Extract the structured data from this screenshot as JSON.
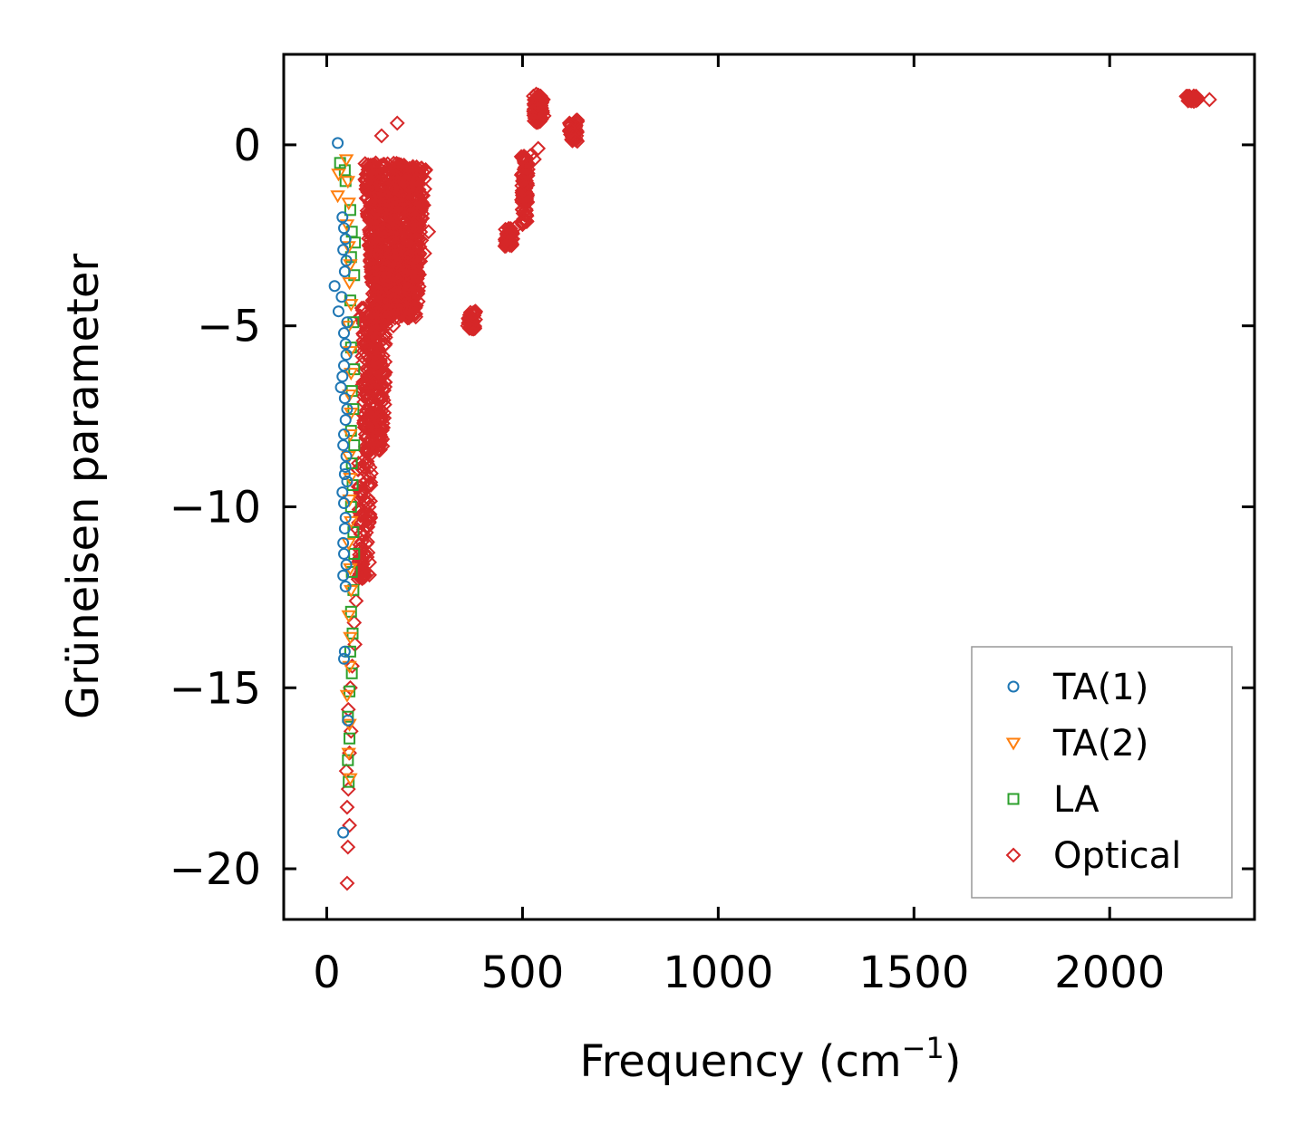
{
  "chart_data": {
    "type": "scatter",
    "title": "",
    "xlabel": "Frequency (cm",
    "xlabel_unit_superscript": "−1",
    "xlabel_close": ")",
    "ylabel": "Grüneisen parameter",
    "xlim": [
      -110,
      2370
    ],
    "ylim": [
      -21.4,
      2.5
    ],
    "x_ticks": [
      0,
      500,
      1000,
      1500,
      2000
    ],
    "x_tick_labels": [
      "0",
      "500",
      "1000",
      "1500",
      "2000"
    ],
    "y_ticks": [
      0,
      -5,
      -10,
      -15,
      -20
    ],
    "y_tick_labels": [
      "0",
      "−5",
      "−10",
      "−15",
      "−20"
    ],
    "grid": false,
    "legend_position": "lower-right",
    "series": [
      {
        "name": "TA(1)",
        "marker": "circle",
        "color": "#1f77b4",
        "points": [
          [
            28,
            0.05
          ],
          [
            40,
            -2.0
          ],
          [
            44,
            -2.3
          ],
          [
            48,
            -2.6
          ],
          [
            42,
            -2.9
          ],
          [
            50,
            -3.2
          ],
          [
            46,
            -3.5
          ],
          [
            20,
            -3.9
          ],
          [
            38,
            -4.2
          ],
          [
            30,
            -4.6
          ],
          [
            52,
            -4.9
          ],
          [
            44,
            -5.2
          ],
          [
            48,
            -5.5
          ],
          [
            50,
            -5.8
          ],
          [
            44,
            -6.1
          ],
          [
            40,
            -6.4
          ],
          [
            36,
            -6.7
          ],
          [
            46,
            -7.0
          ],
          [
            52,
            -7.3
          ],
          [
            48,
            -7.6
          ],
          [
            44,
            -8.0
          ],
          [
            42,
            -8.3
          ],
          [
            50,
            -8.6
          ],
          [
            48,
            -8.9
          ],
          [
            46,
            -9.1
          ],
          [
            52,
            -9.3
          ],
          [
            40,
            -9.6
          ],
          [
            44,
            -9.9
          ],
          [
            48,
            -10.3
          ],
          [
            46,
            -10.6
          ],
          [
            42,
            -11.0
          ],
          [
            44,
            -11.3
          ],
          [
            50,
            -11.6
          ],
          [
            42,
            -11.9
          ],
          [
            48,
            -12.2
          ],
          [
            46,
            -14.0
          ],
          [
            44,
            -14.2
          ],
          [
            54,
            -15.9
          ],
          [
            42,
            -19.0
          ]
        ]
      },
      {
        "name": "TA(2)",
        "marker": "triangle-down",
        "color": "#ff7f0e",
        "points": [
          [
            30,
            -0.8
          ],
          [
            28,
            -1.4
          ],
          [
            50,
            -0.4
          ],
          [
            54,
            -1.0
          ],
          [
            56,
            -1.6
          ],
          [
            52,
            -2.2
          ],
          [
            56,
            -2.8
          ],
          [
            60,
            -3.3
          ],
          [
            58,
            -3.8
          ],
          [
            62,
            -4.4
          ],
          [
            56,
            -5.0
          ],
          [
            60,
            -5.7
          ],
          [
            62,
            -6.3
          ],
          [
            58,
            -6.9
          ],
          [
            62,
            -7.4
          ],
          [
            60,
            -8.0
          ],
          [
            56,
            -8.6
          ],
          [
            60,
            -9.2
          ],
          [
            58,
            -9.8
          ],
          [
            62,
            -10.4
          ],
          [
            56,
            -11.0
          ],
          [
            60,
            -11.7
          ],
          [
            62,
            -12.3
          ],
          [
            56,
            -13.0
          ],
          [
            60,
            -13.6
          ],
          [
            58,
            -14.4
          ],
          [
            52,
            -15.2
          ],
          [
            58,
            -16.0
          ],
          [
            56,
            -16.8
          ],
          [
            60,
            -17.5
          ]
        ]
      },
      {
        "name": "LA",
        "marker": "square",
        "color": "#2ca02c",
        "points": [
          [
            34,
            -0.5
          ],
          [
            46,
            -0.7
          ],
          [
            48,
            -1.0
          ],
          [
            60,
            -1.8
          ],
          [
            64,
            -2.4
          ],
          [
            72,
            -2.7
          ],
          [
            62,
            -3.1
          ],
          [
            70,
            -3.6
          ],
          [
            60,
            -4.3
          ],
          [
            68,
            -4.9
          ],
          [
            62,
            -5.6
          ],
          [
            70,
            -6.2
          ],
          [
            64,
            -6.8
          ],
          [
            68,
            -7.3
          ],
          [
            62,
            -7.9
          ],
          [
            70,
            -8.3
          ],
          [
            64,
            -8.8
          ],
          [
            66,
            -9.4
          ],
          [
            62,
            -10.0
          ],
          [
            68,
            -10.7
          ],
          [
            70,
            -11.3
          ],
          [
            64,
            -11.8
          ],
          [
            68,
            -12.3
          ],
          [
            62,
            -12.9
          ],
          [
            66,
            -13.5
          ],
          [
            60,
            -14.0
          ],
          [
            64,
            -14.6
          ],
          [
            58,
            -15.1
          ],
          [
            54,
            -15.8
          ],
          [
            58,
            -16.4
          ],
          [
            54,
            -17.0
          ],
          [
            56,
            -17.6
          ]
        ]
      },
      {
        "name": "Optical",
        "marker": "diamond",
        "color": "#d62728",
        "points": [
          [
            180,
            0.6
          ],
          [
            140,
            0.25
          ],
          [
            125,
            -0.5
          ],
          [
            100,
            -1.0
          ],
          [
            110,
            -1.6
          ],
          [
            150,
            -1.3
          ],
          [
            200,
            -1.0
          ],
          [
            220,
            -0.6
          ],
          [
            240,
            -1.8
          ],
          [
            260,
            -2.4
          ],
          [
            250,
            -3.0
          ],
          [
            230,
            -3.5
          ],
          [
            210,
            -4.0
          ],
          [
            190,
            -4.5
          ],
          [
            170,
            -5.0
          ],
          [
            150,
            -5.5
          ],
          [
            130,
            -6.0
          ],
          [
            120,
            -6.6
          ],
          [
            110,
            -7.2
          ],
          [
            105,
            -7.8
          ],
          [
            100,
            -8.4
          ],
          [
            95,
            -9.0
          ],
          [
            90,
            -9.6
          ],
          [
            100,
            -10.2
          ],
          [
            95,
            -10.8
          ],
          [
            85,
            -11.4
          ],
          [
            80,
            -12.0
          ],
          [
            75,
            -12.6
          ],
          [
            70,
            -13.2
          ],
          [
            72,
            -13.8
          ],
          [
            65,
            -14.4
          ],
          [
            60,
            -15.0
          ],
          [
            55,
            -15.6
          ],
          [
            62,
            -16.2
          ],
          [
            58,
            -16.8
          ],
          [
            50,
            -17.3
          ],
          [
            55,
            -17.8
          ],
          [
            52,
            -18.3
          ],
          [
            58,
            -18.8
          ],
          [
            54,
            -19.4
          ],
          [
            52,
            -20.4
          ],
          [
            360,
            -5.0
          ],
          [
            370,
            -4.8
          ],
          [
            380,
            -4.6
          ],
          [
            365,
            -4.7
          ],
          [
            455,
            -2.8
          ],
          [
            470,
            -2.5
          ],
          [
            480,
            -2.3
          ],
          [
            475,
            -2.6
          ],
          [
            500,
            -1.8
          ],
          [
            505,
            -2.1
          ],
          [
            510,
            -1.5
          ],
          [
            500,
            -1.0
          ],
          [
            505,
            -0.5
          ],
          [
            520,
            -0.3
          ],
          [
            540,
            -0.1
          ],
          [
            530,
            -0.4
          ],
          [
            540,
            1.0
          ],
          [
            545,
            0.7
          ],
          [
            550,
            1.2
          ],
          [
            535,
            1.4
          ],
          [
            555,
            0.8
          ],
          [
            620,
            0.6
          ],
          [
            630,
            0.3
          ],
          [
            640,
            0.1
          ],
          [
            625,
            0.4
          ],
          [
            2200,
            1.3
          ],
          [
            2215,
            1.2
          ],
          [
            2225,
            1.25
          ],
          [
            2210,
            1.3
          ],
          [
            2255,
            1.25
          ]
        ],
        "clusters": [
          {
            "x_center": 175,
            "x_spread": 80,
            "y_top": -0.5,
            "y_bottom": -4.8,
            "count": 900
          },
          {
            "x_center": 120,
            "x_spread": 35,
            "y_top": -4.5,
            "y_bottom": -8.5,
            "count": 260
          },
          {
            "x_center": 95,
            "x_spread": 20,
            "y_top": -8.5,
            "y_bottom": -12.0,
            "count": 90
          },
          {
            "x_center": 370,
            "x_spread": 12,
            "y_top": -4.6,
            "y_bottom": -5.1,
            "count": 40
          },
          {
            "x_center": 465,
            "x_spread": 12,
            "y_top": -2.3,
            "y_bottom": -2.8,
            "count": 40
          },
          {
            "x_center": 505,
            "x_spread": 10,
            "y_top": -0.3,
            "y_bottom": -2.2,
            "count": 90
          },
          {
            "x_center": 540,
            "x_spread": 14,
            "y_top": 1.4,
            "y_bottom": 0.6,
            "count": 60
          },
          {
            "x_center": 630,
            "x_spread": 12,
            "y_top": 0.7,
            "y_bottom": 0.1,
            "count": 40
          },
          {
            "x_center": 2210,
            "x_spread": 15,
            "y_top": 1.35,
            "y_bottom": 1.2,
            "count": 25
          }
        ]
      }
    ]
  }
}
